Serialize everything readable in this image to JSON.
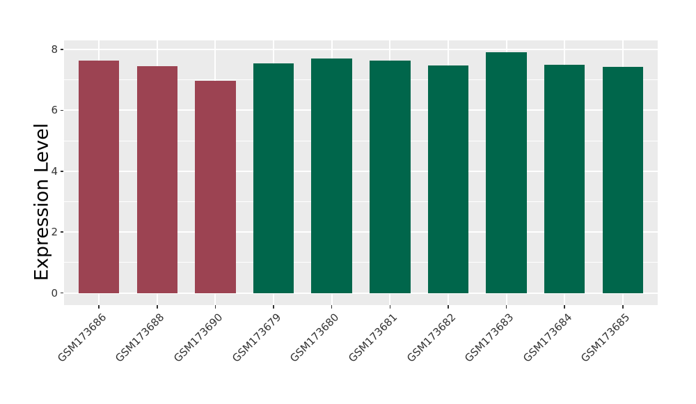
{
  "figure": {
    "background": "#FFFFFF",
    "panel_background": "#EBEBEB",
    "grid_color": "#FFFFFF",
    "axis_text_color": "#333333",
    "axis_title_color": "#000000",
    "tick_mark_color": "#333333"
  },
  "chart_data": {
    "type": "bar",
    "title": "",
    "xlabel": "",
    "ylabel": "Expression Level",
    "categories": [
      "GSM173686",
      "GSM173688",
      "GSM173690",
      "GSM173679",
      "GSM173680",
      "GSM173681",
      "GSM173682",
      "GSM173683",
      "GSM173684",
      "GSM173685"
    ],
    "values": [
      7.63,
      7.45,
      6.97,
      7.55,
      7.7,
      7.64,
      7.48,
      7.9,
      7.5,
      7.42
    ],
    "bar_colors": [
      "#9C4352",
      "#9C4352",
      "#9C4352",
      "#00664B",
      "#00664B",
      "#00664B",
      "#00664B",
      "#00664B",
      "#00664B",
      "#00664B"
    ],
    "groups": [
      {
        "color": "#9C4352",
        "samples": [
          "GSM173686",
          "GSM173688",
          "GSM173690"
        ]
      },
      {
        "color": "#00664B",
        "samples": [
          "GSM173679",
          "GSM173680",
          "GSM173681",
          "GSM173682",
          "GSM173683",
          "GSM173684",
          "GSM173685"
        ]
      }
    ],
    "ylim": [
      0,
      8
    ],
    "yticks_major": [
      0,
      2,
      4,
      6,
      8
    ],
    "yticks_minor": [
      1,
      3,
      5,
      7
    ],
    "panel_value_range": [
      -0.4,
      8.3
    ],
    "grid": true,
    "legend": "none",
    "bar_width_fraction": 0.7,
    "x_label_rotation_deg": 45
  }
}
